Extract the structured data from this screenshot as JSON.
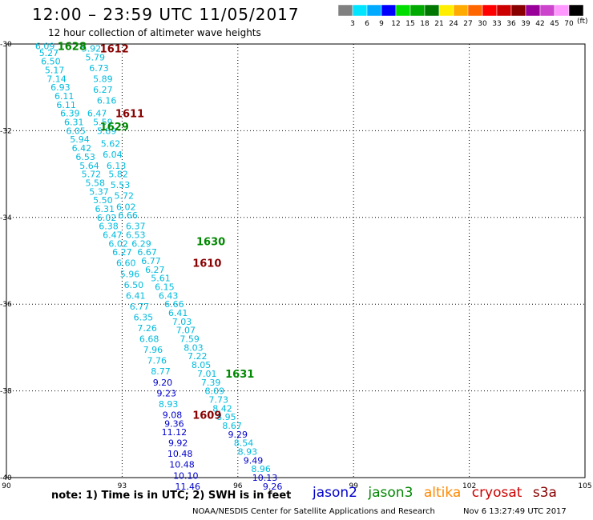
{
  "header": {
    "title": "12:00 – 23:59 UTC 11/05/2017",
    "subtitle": "12 hour collection of altimeter wave heights"
  },
  "colorbar": {
    "labels": [
      "3",
      "6",
      "9",
      "12",
      "15",
      "18",
      "21",
      "24",
      "27",
      "30",
      "33",
      "36",
      "39",
      "42",
      "45",
      "70"
    ],
    "colors": [
      "#808080",
      "#00e5ff",
      "#00aaff",
      "#0000ff",
      "#00dd00",
      "#00aa00",
      "#007700",
      "#ffee00",
      "#ffaa00",
      "#ff6600",
      "#ff0000",
      "#cc0000",
      "#880000",
      "#990099",
      "#cc44cc",
      "#ff99ff",
      "#000000"
    ],
    "units": "(ft)"
  },
  "axes": {
    "lat_labels": [
      "-30",
      "-32",
      "-34",
      "-36",
      "-38",
      "-40"
    ],
    "lat_values": [
      -30,
      -32,
      -34,
      -36,
      -38,
      -40
    ],
    "lon_labels": [
      "90",
      "93",
      "96",
      "99",
      "102",
      "105"
    ],
    "lon_values": [
      90,
      93,
      96,
      99,
      102,
      105
    ],
    "lon_range": [
      90,
      105
    ],
    "lat_range": [
      -30,
      -40
    ],
    "grid": true
  },
  "track_labels": [
    {
      "text": "1628",
      "color": "#008800",
      "lon": 91.7,
      "lat": -30.05
    },
    {
      "text": "1612",
      "color": "#880000",
      "lon": 92.8,
      "lat": -30.1
    },
    {
      "text": "1611",
      "color": "#880000",
      "lon": 93.2,
      "lat": -31.6
    },
    {
      "text": "1629",
      "color": "#008800",
      "lon": 92.8,
      "lat": -31.9
    },
    {
      "text": "1630",
      "color": "#008800",
      "lon": 95.3,
      "lat": -34.55
    },
    {
      "text": "1610",
      "color": "#880000",
      "lon": 95.2,
      "lat": -35.05
    },
    {
      "text": "1631",
      "color": "#008800",
      "lon": 96.05,
      "lat": -37.6
    },
    {
      "text": "1609",
      "color": "#880000",
      "lon": 95.2,
      "lat": -38.55
    }
  ],
  "tracks": [
    {
      "color_scheme": "leftmost",
      "points": [
        {
          "v": "6.09",
          "lon": 91.0,
          "lat": -30.05,
          "c": "#00bbdd"
        },
        {
          "v": "5.27",
          "lon": 91.1,
          "lat": -30.2,
          "c": "#00bbdd"
        },
        {
          "v": "6.50",
          "lon": 91.15,
          "lat": -30.4,
          "c": "#00bbdd"
        },
        {
          "v": "5.17",
          "lon": 91.25,
          "lat": -30.6,
          "c": "#00bbdd"
        },
        {
          "v": "7.14",
          "lon": 91.3,
          "lat": -30.8,
          "c": "#00bbdd"
        },
        {
          "v": "6.93",
          "lon": 91.4,
          "lat": -31.0,
          "c": "#00bbdd"
        },
        {
          "v": "6.11",
          "lon": 91.5,
          "lat": -31.2,
          "c": "#00bbdd"
        },
        {
          "v": "6.11",
          "lon": 91.55,
          "lat": -31.4,
          "c": "#00bbdd"
        },
        {
          "v": "6.39",
          "lon": 91.65,
          "lat": -31.6,
          "c": "#00bbdd"
        },
        {
          "v": "6.31",
          "lon": 91.75,
          "lat": -31.8,
          "c": "#00bbdd"
        },
        {
          "v": "6.05",
          "lon": 91.8,
          "lat": -32.0,
          "c": "#00bbdd"
        },
        {
          "v": "5.94",
          "lon": 91.9,
          "lat": -32.2,
          "c": "#00bbdd"
        },
        {
          "v": "6.42",
          "lon": 91.95,
          "lat": -32.4,
          "c": "#00bbdd"
        },
        {
          "v": "6.53",
          "lon": 92.05,
          "lat": -32.6,
          "c": "#00bbdd"
        },
        {
          "v": "5.64",
          "lon": 92.15,
          "lat": -32.8,
          "c": "#00bbdd"
        },
        {
          "v": "5.72",
          "lon": 92.2,
          "lat": -33.0,
          "c": "#00bbdd"
        },
        {
          "v": "5.58",
          "lon": 92.3,
          "lat": -33.2,
          "c": "#00bbdd"
        },
        {
          "v": "5.37",
          "lon": 92.4,
          "lat": -33.4,
          "c": "#00bbdd"
        },
        {
          "v": "5.50",
          "lon": 92.5,
          "lat": -33.6,
          "c": "#00bbdd"
        },
        {
          "v": "6.31",
          "lon": 92.55,
          "lat": -33.8,
          "c": "#00bbdd"
        },
        {
          "v": "6.02",
          "lon": 92.6,
          "lat": -34.0,
          "c": "#00bbdd"
        },
        {
          "v": "6.38",
          "lon": 92.65,
          "lat": -34.2,
          "c": "#00bbdd"
        },
        {
          "v": "6.47",
          "lon": 92.75,
          "lat": -34.4,
          "c": "#00bbdd"
        },
        {
          "v": "6.02",
          "lon": 92.9,
          "lat": -34.6,
          "c": "#00bbdd"
        },
        {
          "v": "6.27",
          "lon": 93.0,
          "lat": -34.8,
          "c": "#00bbdd"
        },
        {
          "v": "6.60",
          "lon": 93.1,
          "lat": -35.05,
          "c": "#00bbdd"
        },
        {
          "v": "5.96",
          "lon": 93.2,
          "lat": -35.3,
          "c": "#00bbdd"
        },
        {
          "v": "6.50",
          "lon": 93.3,
          "lat": -35.55,
          "c": "#00bbdd"
        },
        {
          "v": "6.41",
          "lon": 93.35,
          "lat": -35.8,
          "c": "#00bbdd"
        },
        {
          "v": "6.77",
          "lon": 93.45,
          "lat": -36.05,
          "c": "#00bbdd"
        },
        {
          "v": "6.35",
          "lon": 93.55,
          "lat": -36.3,
          "c": "#00bbdd"
        },
        {
          "v": "7.26",
          "lon": 93.65,
          "lat": -36.55,
          "c": "#00bbdd"
        },
        {
          "v": "6.68",
          "lon": 93.7,
          "lat": -36.8,
          "c": "#00bbdd"
        },
        {
          "v": "7.96",
          "lon": 93.8,
          "lat": -37.05,
          "c": "#00bbdd"
        },
        {
          "v": "7.76",
          "lon": 93.9,
          "lat": -37.3,
          "c": "#00bbdd"
        },
        {
          "v": "8.77",
          "lon": 94.0,
          "lat": -37.55,
          "c": "#00bbdd"
        },
        {
          "v": "9.20",
          "lon": 94.05,
          "lat": -37.8,
          "c": "#0000cc"
        },
        {
          "v": "9.23",
          "lon": 94.15,
          "lat": -38.05,
          "c": "#0000cc"
        },
        {
          "v": "8.93",
          "lon": 94.2,
          "lat": -38.3,
          "c": "#00bbdd"
        },
        {
          "v": "9.08",
          "lon": 94.3,
          "lat": -38.55,
          "c": "#0000cc"
        },
        {
          "v": "9.36",
          "lon": 94.35,
          "lat": -38.75,
          "c": "#0000cc"
        },
        {
          "v": "11.12",
          "lon": 94.35,
          "lat": -38.95,
          "c": "#0000cc"
        },
        {
          "v": "9.92",
          "lon": 94.45,
          "lat": -39.2,
          "c": "#0000cc"
        },
        {
          "v": "10.48",
          "lon": 94.5,
          "lat": -39.45,
          "c": "#0000cc"
        },
        {
          "v": "10.48",
          "lon": 94.55,
          "lat": -39.7,
          "c": "#0000cc"
        },
        {
          "v": "10.10",
          "lon": 94.65,
          "lat": -39.95,
          "c": "#0000cc"
        },
        {
          "v": "11.46",
          "lon": 94.7,
          "lat": -40.2,
          "c": "#0000cc"
        }
      ]
    },
    {
      "color_scheme": "right",
      "points": [
        {
          "v": "5.92",
          "lon": 92.2,
          "lat": -30.1,
          "c": "#00bbdd"
        },
        {
          "v": "5.79",
          "lon": 92.3,
          "lat": -30.3,
          "c": "#00bbdd"
        },
        {
          "v": "6.73",
          "lon": 92.4,
          "lat": -30.55,
          "c": "#00bbdd"
        },
        {
          "v": "5.89",
          "lon": 92.5,
          "lat": -30.8,
          "c": "#00bbdd"
        },
        {
          "v": "6.27",
          "lon": 92.5,
          "lat": -31.05,
          "c": "#00bbdd"
        },
        {
          "v": "6.16",
          "lon": 92.6,
          "lat": -31.3,
          "c": "#00bbdd"
        },
        {
          "v": "6.47",
          "lon": 92.35,
          "lat": -31.6,
          "c": "#00bbdd"
        },
        {
          "v": "5.59",
          "lon": 92.5,
          "lat": -31.8,
          "c": "#00bbdd"
        },
        {
          "v": "5.89",
          "lon": 92.6,
          "lat": -32.0,
          "c": "#00bbdd"
        },
        {
          "v": "5.62",
          "lon": 92.7,
          "lat": -32.3,
          "c": "#00bbdd"
        },
        {
          "v": "6.04",
          "lon": 92.75,
          "lat": -32.55,
          "c": "#00bbdd"
        },
        {
          "v": "6.13",
          "lon": 92.85,
          "lat": -32.8,
          "c": "#00bbdd"
        },
        {
          "v": "5.82",
          "lon": 92.9,
          "lat": -33.0,
          "c": "#00bbdd"
        },
        {
          "v": "5.53",
          "lon": 92.95,
          "lat": -33.25,
          "c": "#00bbdd"
        },
        {
          "v": "5.72",
          "lon": 93.05,
          "lat": -33.5,
          "c": "#00bbdd"
        },
        {
          "v": "6.02",
          "lon": 93.1,
          "lat": -33.75,
          "c": "#00bbdd"
        },
        {
          "v": "6.66",
          "lon": 93.15,
          "lat": -33.95,
          "c": "#00bbdd"
        },
        {
          "v": "6.37",
          "lon": 93.35,
          "lat": -34.2,
          "c": "#00bbdd"
        },
        {
          "v": "6.53",
          "lon": 93.35,
          "lat": -34.4,
          "c": "#00bbdd"
        },
        {
          "v": "6.29",
          "lon": 93.5,
          "lat": -34.6,
          "c": "#00bbdd"
        },
        {
          "v": "6.67",
          "lon": 93.65,
          "lat": -34.8,
          "c": "#00bbdd"
        },
        {
          "v": "6.77",
          "lon": 93.75,
          "lat": -35.0,
          "c": "#00bbdd"
        },
        {
          "v": "6.27",
          "lon": 93.85,
          "lat": -35.2,
          "c": "#00bbdd"
        },
        {
          "v": "5.61",
          "lon": 94.0,
          "lat": -35.4,
          "c": "#00bbdd"
        },
        {
          "v": "6.15",
          "lon": 94.1,
          "lat": -35.6,
          "c": "#00bbdd"
        },
        {
          "v": "6.43",
          "lon": 94.2,
          "lat": -35.8,
          "c": "#00bbdd"
        },
        {
          "v": "6.66",
          "lon": 94.35,
          "lat": -36.0,
          "c": "#00bbdd"
        },
        {
          "v": "6.41",
          "lon": 94.45,
          "lat": -36.2,
          "c": "#00bbdd"
        },
        {
          "v": "7.03",
          "lon": 94.55,
          "lat": -36.4,
          "c": "#00bbdd"
        },
        {
          "v": "7.07",
          "lon": 94.65,
          "lat": -36.6,
          "c": "#00bbdd"
        },
        {
          "v": "7.59",
          "lon": 94.75,
          "lat": -36.8,
          "c": "#00bbdd"
        },
        {
          "v": "8.03",
          "lon": 94.85,
          "lat": -37.0,
          "c": "#00bbdd"
        },
        {
          "v": "7.22",
          "lon": 94.95,
          "lat": -37.2,
          "c": "#00bbdd"
        },
        {
          "v": "8.05",
          "lon": 95.05,
          "lat": -37.4,
          "c": "#00bbdd"
        },
        {
          "v": "7.01",
          "lon": 95.2,
          "lat": -37.6,
          "c": "#00bbdd"
        },
        {
          "v": "7.39",
          "lon": 95.3,
          "lat": -37.8,
          "c": "#00bbdd"
        },
        {
          "v": "8.09",
          "lon": 95.4,
          "lat": -38.0,
          "c": "#00bbdd"
        },
        {
          "v": "7.73",
          "lon": 95.5,
          "lat": -38.2,
          "c": "#00bbdd"
        },
        {
          "v": "8.42",
          "lon": 95.6,
          "lat": -38.4,
          "c": "#00bbdd"
        },
        {
          "v": "8.95",
          "lon": 95.7,
          "lat": -38.6,
          "c": "#00bbdd"
        },
        {
          "v": "8.67",
          "lon": 95.85,
          "lat": -38.8,
          "c": "#00bbdd"
        },
        {
          "v": "9.29",
          "lon": 96.0,
          "lat": -39.0,
          "c": "#0000cc"
        },
        {
          "v": "8.54",
          "lon": 96.15,
          "lat": -39.2,
          "c": "#00bbdd"
        },
        {
          "v": "8.93",
          "lon": 96.25,
          "lat": -39.4,
          "c": "#00bbdd"
        },
        {
          "v": "9.49",
          "lon": 96.4,
          "lat": -39.6,
          "c": "#0000cc"
        },
        {
          "v": "8.96",
          "lon": 96.6,
          "lat": -39.8,
          "c": "#00bbdd"
        },
        {
          "v": "10.13",
          "lon": 96.7,
          "lat": -40.0,
          "c": "#0000cc"
        },
        {
          "v": "9.26",
          "lon": 96.9,
          "lat": -40.2,
          "c": "#0000cc"
        }
      ]
    }
  ],
  "note": "note:  1) Time is in UTC;  2) SWH is in feet",
  "legend": [
    {
      "label": "jason2",
      "color": "#0000cc"
    },
    {
      "label": "jason3",
      "color": "#008800"
    },
    {
      "label": "altika",
      "color": "#ff8800"
    },
    {
      "label": "cryosat",
      "color": "#cc0000"
    },
    {
      "label": "s3a",
      "color": "#880000"
    }
  ],
  "footer": {
    "credit": "NOAA/NESDIS Center for Satellite Applications and Research",
    "timestamp": "Nov  6 13:27:49 UTC 2017"
  }
}
